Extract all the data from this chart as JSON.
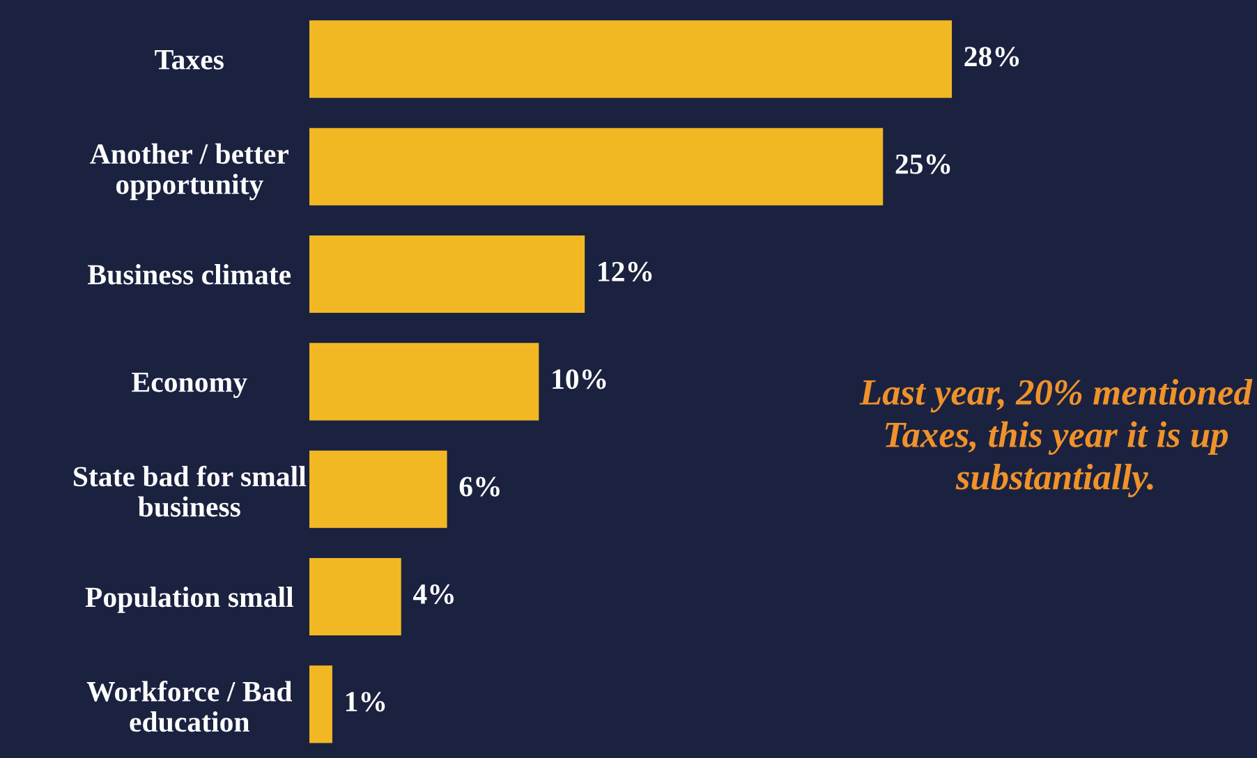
{
  "chart_data": {
    "type": "bar",
    "orientation": "horizontal",
    "categories": [
      "Taxes",
      "Another / better\nopportunity",
      "Business climate",
      "Economy",
      "State bad for small\nbusiness",
      "Population small",
      "Workforce / Bad\neducation"
    ],
    "values": [
      28,
      25,
      12,
      10,
      6,
      4,
      1
    ],
    "value_labels": [
      "28%",
      "25%",
      "12%",
      "10%",
      "6%",
      "4%",
      "1%"
    ],
    "color": "#f2b824",
    "xlim": [
      0,
      41.3
    ],
    "annotations": [
      "Last year, 20% mentioned Taxes, this year it is up substantially."
    ],
    "grid": false,
    "legend": false
  }
}
